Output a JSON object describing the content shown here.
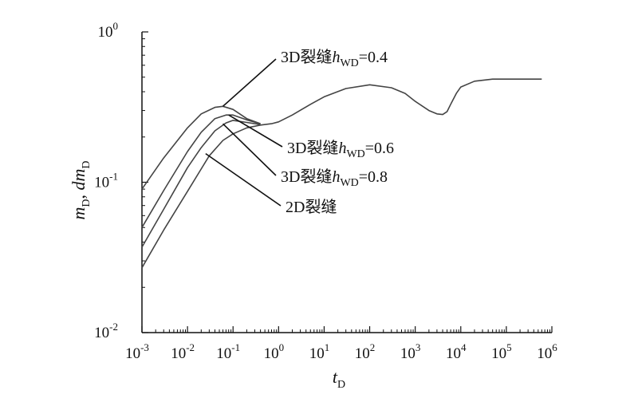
{
  "chart_data": {
    "type": "line",
    "xscale": "log",
    "yscale": "log",
    "xlim": [
      0.001,
      1000000
    ],
    "ylim": [
      0.01,
      1
    ],
    "xlabel": "t",
    "xlabel_sub": "D",
    "ylabel_parts": [
      {
        "text": "m",
        "sub": "D"
      },
      {
        "text": ", "
      },
      {
        "text": "dm",
        "sub": "D"
      }
    ],
    "xticks": [
      {
        "base": "10",
        "exp": "-3"
      },
      {
        "base": "10",
        "exp": "-2"
      },
      {
        "base": "10",
        "exp": "-1"
      },
      {
        "base": "10",
        "exp": "0"
      },
      {
        "base": "10",
        "exp": "1"
      },
      {
        "base": "10",
        "exp": "2"
      },
      {
        "base": "10",
        "exp": "3"
      },
      {
        "base": "10",
        "exp": "4"
      },
      {
        "base": "10",
        "exp": "5"
      },
      {
        "base": "10",
        "exp": "6"
      }
    ],
    "yticks": [
      {
        "base": "10",
        "exp": "-2"
      },
      {
        "base": "10",
        "exp": "-1"
      },
      {
        "base": "10",
        "exp": "0"
      }
    ],
    "series": [
      {
        "name": "3D裂缝hWD=0.4",
        "x": [
          0.001,
          0.003,
          0.01,
          0.02,
          0.04,
          0.06,
          0.1,
          0.2,
          0.4
        ],
        "y": [
          0.09,
          0.145,
          0.23,
          0.285,
          0.315,
          0.32,
          0.305,
          0.265,
          0.245
        ]
      },
      {
        "name": "3D裂缝hWD=0.6",
        "x": [
          0.001,
          0.003,
          0.01,
          0.02,
          0.04,
          0.07,
          0.1,
          0.2,
          0.4
        ],
        "y": [
          0.05,
          0.088,
          0.16,
          0.215,
          0.265,
          0.28,
          0.28,
          0.26,
          0.245
        ]
      },
      {
        "name": "3D裂缝hWD=0.8",
        "x": [
          0.001,
          0.003,
          0.01,
          0.02,
          0.04,
          0.07,
          0.1,
          0.2,
          0.4
        ],
        "y": [
          0.037,
          0.066,
          0.125,
          0.17,
          0.22,
          0.248,
          0.258,
          0.25,
          0.242
        ]
      },
      {
        "name": "2D裂缝",
        "x": [
          0.001,
          0.003,
          0.01,
          0.03,
          0.06,
          0.1,
          0.2,
          0.4,
          0.7,
          1,
          2,
          5,
          10,
          30,
          100,
          300,
          600,
          1000,
          2000,
          3000,
          4000,
          5000,
          6000,
          8000,
          10000,
          20000,
          50000,
          100000,
          600000
        ],
        "y": [
          0.027,
          0.048,
          0.087,
          0.15,
          0.19,
          0.21,
          0.23,
          0.24,
          0.245,
          0.252,
          0.28,
          0.33,
          0.37,
          0.42,
          0.445,
          0.425,
          0.39,
          0.345,
          0.3,
          0.285,
          0.282,
          0.295,
          0.33,
          0.39,
          0.43,
          0.47,
          0.485,
          0.485,
          0.485
        ]
      }
    ],
    "annotations": [
      {
        "label": "3D裂缝",
        "var": "h",
        "sub": "WD",
        "value": "=0.4",
        "target_x": 0.06,
        "target_y": 0.32
      },
      {
        "label": "3D裂缝",
        "var": "h",
        "sub": "WD",
        "value": "=0.6",
        "target_x": 0.08,
        "target_y": 0.28
      },
      {
        "label": "3D裂缝",
        "var": "h",
        "sub": "WD",
        "value": "=0.8",
        "target_x": 0.06,
        "target_y": 0.245
      },
      {
        "label": "2D裂缝",
        "var": "",
        "sub": "",
        "value": "",
        "target_x": 0.025,
        "target_y": 0.155
      }
    ],
    "grid": false,
    "legend": "none",
    "colors": {
      "curve": "#444444",
      "axis": "#111111",
      "leader": "#111111"
    }
  }
}
